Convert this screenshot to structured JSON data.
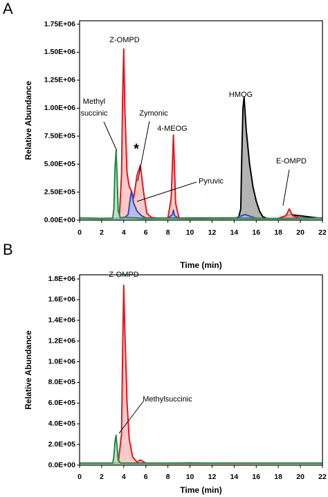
{
  "chart_data": [
    {
      "type": "line",
      "panel": "A",
      "x_label": "Time (min)",
      "y_label": "Relative Abundance",
      "xlim": [
        0,
        22
      ],
      "xticks": [
        0,
        2,
        4,
        6,
        8,
        10,
        12,
        14,
        16,
        18,
        20,
        22
      ],
      "ylim": [
        0,
        1750000
      ],
      "yticks": [
        {
          "value": 0,
          "label": "0.00E+00"
        },
        {
          "value": 250000,
          "label": "2.50E+05"
        },
        {
          "value": 500000,
          "label": "5.00E+05"
        },
        {
          "value": 750000,
          "label": "7.50E+05"
        },
        {
          "value": 1000000,
          "label": "1.00E+06"
        },
        {
          "value": 1250000,
          "label": "1.25E+06"
        },
        {
          "value": 1500000,
          "label": "1.50E+06"
        },
        {
          "value": 1750000,
          "label": "1.75E+06"
        }
      ],
      "annotations": [
        "Z-OMPD",
        [
          "Methyl",
          "succinic"
        ],
        "Zymonic",
        "*",
        "4-MEOG",
        "HMOG",
        "E-OMPD",
        "Pyruvic"
      ],
      "series": [
        {
          "color": "#7b3f9e",
          "fill": "none",
          "x": [
            0,
            22
          ],
          "values": [
            10000,
            10000
          ]
        },
        {
          "color": "#000000",
          "fill": "#9a9a9a",
          "x": [
            0,
            10,
            14.4,
            14.6,
            14.7,
            14.8,
            14.9,
            15.1,
            15.4,
            15.7,
            16,
            16.3,
            16.6,
            17,
            18,
            19,
            22
          ],
          "values": [
            15000,
            18000,
            20000,
            100000,
            600000,
            1000000,
            1100000,
            800000,
            500000,
            300000,
            170000,
            80000,
            30000,
            15000,
            15000,
            50000,
            15000
          ]
        },
        {
          "color": "#e8141c",
          "fill": "#f6b8b8",
          "x": [
            0,
            1,
            2,
            3,
            3.6,
            3.8,
            3.9,
            4.0,
            4.1,
            4.3,
            4.5,
            4.7,
            4.9,
            5.2,
            5.5,
            5.8,
            6.1,
            6.5,
            7,
            8,
            8.3,
            8.5,
            8.7,
            9,
            10,
            12,
            14,
            16,
            18,
            18.7,
            19,
            19.3,
            20,
            22
          ],
          "values": [
            15000,
            18000,
            15000,
            16000,
            20000,
            400000,
            1100000,
            1530000,
            1000000,
            420000,
            300000,
            260000,
            200000,
            400000,
            490000,
            250000,
            60000,
            25000,
            18000,
            15000,
            200000,
            760000,
            150000,
            20000,
            15000,
            18000,
            15000,
            16000,
            15000,
            40000,
            100000,
            40000,
            15000,
            15000
          ]
        },
        {
          "color": "#2a4fc4",
          "fill": "#a9b6e6",
          "x": [
            0,
            4,
            4.4,
            4.6,
            4.7,
            4.9,
            5.2,
            5.6,
            6,
            8,
            8.4,
            8.5,
            8.6,
            9,
            14,
            15,
            16,
            22
          ],
          "values": [
            15000,
            15000,
            50000,
            200000,
            260000,
            150000,
            80000,
            40000,
            20000,
            15000,
            50000,
            90000,
            40000,
            15000,
            15000,
            50000,
            15000,
            15000
          ]
        },
        {
          "color": "#1e8a3c",
          "fill": "#a8d8b4",
          "x": [
            0,
            2,
            3,
            3.1,
            3.2,
            3.3,
            3.4,
            3.5,
            3.7,
            4,
            6,
            8,
            10,
            14,
            18,
            22
          ],
          "values": [
            20000,
            15000,
            18000,
            100000,
            450000,
            620000,
            400000,
            80000,
            20000,
            25000,
            15000,
            20000,
            15000,
            18000,
            15000,
            20000
          ]
        }
      ]
    },
    {
      "type": "line",
      "panel": "B",
      "x_label": "Time (min)",
      "y_label": "Relative Abundance",
      "xlim": [
        0,
        22
      ],
      "xticks": [
        0,
        2,
        4,
        6,
        8,
        10,
        12,
        14,
        16,
        18,
        20,
        22
      ],
      "ylim": [
        0,
        1800000
      ],
      "yticks": [
        {
          "value": 0,
          "label": "0.0E+00"
        },
        {
          "value": 200000,
          "label": "2.0E+05"
        },
        {
          "value": 400000,
          "label": "4.0E+05"
        },
        {
          "value": 600000,
          "label": "6.0E+05"
        },
        {
          "value": 800000,
          "label": "8.0E+05"
        },
        {
          "value": 1000000,
          "label": "1.0E+06"
        },
        {
          "value": 1200000,
          "label": "1.2E+06"
        },
        {
          "value": 1400000,
          "label": "1.4E+06"
        },
        {
          "value": 1600000,
          "label": "1.6E+06"
        },
        {
          "value": 1800000,
          "label": "1.8E+06"
        }
      ],
      "annotations": [
        "Z-OMPD",
        "Methylsuccinic"
      ],
      "series": [
        {
          "color": "#000000",
          "fill": "none",
          "x": [
            0,
            5,
            10,
            15,
            22
          ],
          "values": [
            20000,
            15000,
            22000,
            15000,
            20000
          ]
        },
        {
          "color": "#2a4fc4",
          "fill": "none",
          "x": [
            0,
            8,
            15,
            22
          ],
          "values": [
            15000,
            12000,
            15000,
            12000
          ]
        },
        {
          "color": "#e8141c",
          "fill": "#f6b8b8",
          "x": [
            0,
            3.5,
            3.8,
            3.9,
            4.0,
            4.1,
            4.3,
            4.5,
            4.8,
            5.2,
            5.5,
            6,
            8,
            22
          ],
          "values": [
            20000,
            20000,
            300000,
            1100000,
            1740000,
            1300000,
            600000,
            250000,
            80000,
            30000,
            50000,
            20000,
            15000,
            20000
          ]
        },
        {
          "color": "#1e8a3c",
          "fill": "#a8d8b4",
          "x": [
            0,
            3,
            3.1,
            3.2,
            3.3,
            3.4,
            3.5,
            3.7,
            22
          ],
          "values": [
            20000,
            20000,
            80000,
            220000,
            290000,
            180000,
            50000,
            20000,
            20000
          ]
        }
      ]
    }
  ]
}
